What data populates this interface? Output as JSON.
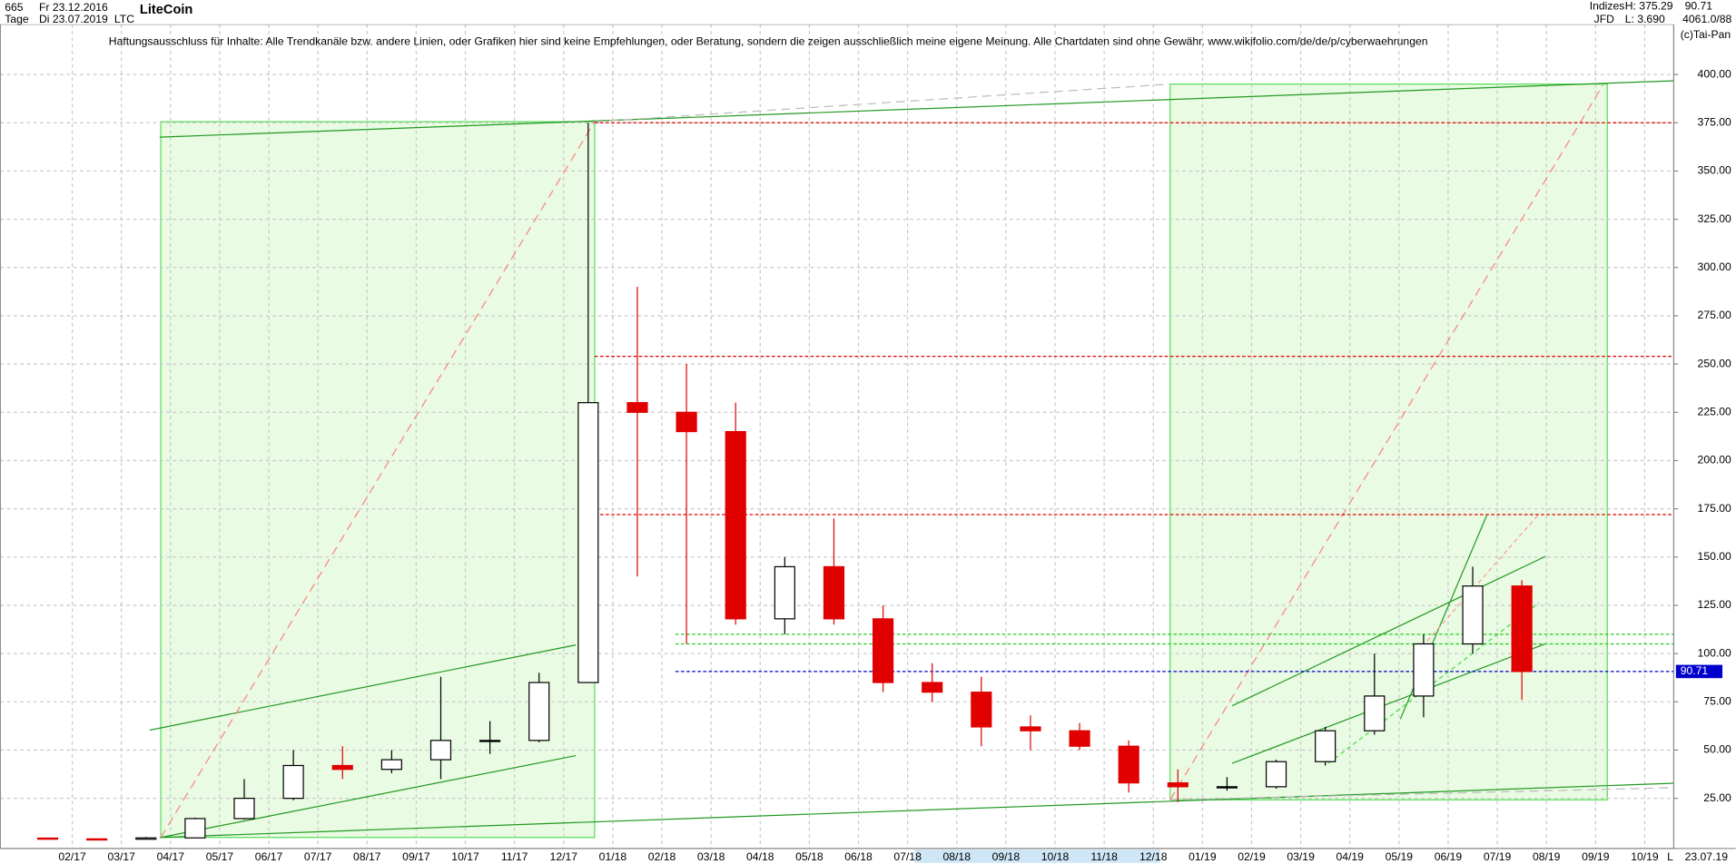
{
  "header": {
    "bars": "665",
    "start": "Fr 23.12.2016",
    "period": "Tage",
    "end": "Di 23.07.2019",
    "name": "LiteCoin",
    "symbol": "LTC",
    "group": "Indizes",
    "source": "JFD",
    "high": "H: 375.29",
    "low": "L: 3.690",
    "info": "4061.0/88",
    "copyright": "(c)Tai-Pan",
    "footer_date": "23.07.19",
    "footer_scale": "L"
  },
  "chart_data": {
    "type": "candlestick",
    "title": "Haftungsausschluss für Inhalte: Alle Trendkanäle bzw. andere Linien, oder Grafiken hier sind keine Empfehlungen, oder Beratung, sondern die zeigen ausschließlich meine eigene Meinung. Alle Chartdaten sind ohne Gewähr.  www.wikifolio.com/de/de/p/cyberwaehrungen",
    "categories": [
      null,
      "02/17",
      "03/17",
      "04/17",
      "05/17",
      "06/17",
      "07/17",
      "08/17",
      "09/17",
      "10/17",
      "11/17",
      "12/17",
      "01/18",
      "02/18",
      "03/18",
      "04/18",
      "05/18",
      "06/18",
      "07/18",
      "08/18",
      "09/18",
      "10/18",
      "11/18",
      "12/18",
      "01/19",
      "02/19",
      "03/19",
      "04/19",
      "05/19",
      "06/19",
      "07/19",
      "08/19",
      "09/19",
      "10/19"
    ],
    "open": [
      4.4,
      4.0,
      3.8,
      4.5,
      14.5,
      25,
      42,
      40,
      45,
      55,
      55,
      85,
      230,
      225,
      215,
      118,
      145,
      118,
      85,
      80,
      62,
      60,
      52,
      33,
      31,
      31,
      44,
      60,
      78,
      105,
      135,
      null,
      null,
      null
    ],
    "high": [
      4.6,
      4.3,
      5,
      15,
      35,
      50,
      52,
      50,
      88,
      65,
      90,
      375,
      290,
      250,
      230,
      150,
      170,
      125,
      95,
      88,
      68,
      64,
      55,
      40,
      36,
      45,
      62,
      100,
      110,
      145,
      138,
      null,
      null,
      null
    ],
    "low": [
      3.7,
      3.8,
      3.7,
      4.3,
      14,
      24,
      35,
      38,
      35,
      48,
      54,
      85,
      140,
      105,
      115,
      110,
      115,
      80,
      75,
      52,
      50,
      50,
      28,
      23,
      29,
      30,
      42,
      58,
      67,
      100,
      76,
      null,
      null,
      null
    ],
    "close": [
      4.0,
      3.8,
      4.5,
      14.5,
      25,
      42,
      40,
      45,
      55,
      55,
      85,
      230,
      225,
      215,
      118,
      145,
      118,
      85,
      80,
      62,
      60,
      52,
      33,
      31,
      31,
      44,
      60,
      78,
      105,
      135,
      90.71,
      null,
      null,
      null
    ],
    "up_color": "#000000",
    "down_color": "#e00000",
    "levels": [
      {
        "value": 375,
        "color": "#e00000"
      },
      {
        "value": 254,
        "color": "#e00000"
      },
      {
        "value": 172,
        "color": "#e00000"
      },
      {
        "value": 110,
        "color": "#22cc22"
      },
      {
        "value": 105,
        "color": "#22cc22"
      },
      {
        "value": 90.71,
        "color": "#0000cc"
      }
    ],
    "ylim": [
      -1,
      426
    ],
    "yticks": [
      {
        "value": 25,
        "label": "25.00"
      },
      {
        "value": 50,
        "label": "50.00"
      },
      {
        "value": 75,
        "label": "75.00"
      },
      {
        "value": 100,
        "label": "100.00"
      },
      {
        "value": 125,
        "label": "125.00"
      },
      {
        "value": 150,
        "label": "150.00"
      },
      {
        "value": 175,
        "label": "175.00"
      },
      {
        "value": 200,
        "label": "200.00"
      },
      {
        "value": 225,
        "label": "225.00"
      },
      {
        "value": 250,
        "label": "250.00"
      },
      {
        "value": 275,
        "label": "275.00"
      },
      {
        "value": 300,
        "label": "300.00"
      },
      {
        "value": 325,
        "label": "325.00"
      },
      {
        "value": 350,
        "label": "350.00"
      },
      {
        "value": 375,
        "label": "375.00"
      },
      {
        "value": 400,
        "label": "400.00"
      }
    ],
    "grid": true
  }
}
